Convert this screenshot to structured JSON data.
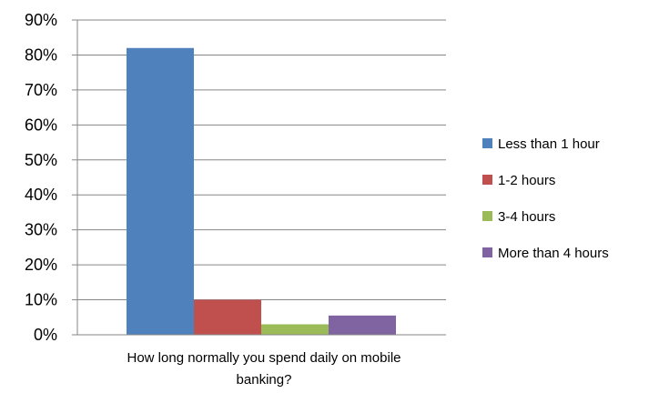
{
  "chart_data": {
    "type": "bar",
    "title": "",
    "xlabel": "How long normally you spend daily on mobile banking?",
    "xlabel_lines": [
      "How long normally you spend daily on mobile",
      "banking?"
    ],
    "ylabel": "",
    "categories": [
      ""
    ],
    "ylim": [
      0,
      90
    ],
    "y_ticks": [
      0,
      10,
      20,
      30,
      40,
      50,
      60,
      70,
      80,
      90
    ],
    "y_tick_labels": [
      "0%",
      "10%",
      "20%",
      "30%",
      "40%",
      "50%",
      "60%",
      "70%",
      "80%",
      "90%"
    ],
    "grid": true,
    "legend_position": "right",
    "series": [
      {
        "name": "Less than 1 hour",
        "values": [
          82
        ],
        "color": "#4F81BD"
      },
      {
        "name": "1-2 hours",
        "values": [
          10
        ],
        "color": "#C0504D"
      },
      {
        "name": "3-4 hours",
        "values": [
          3
        ],
        "color": "#9BBB59"
      },
      {
        "name": "More than 4 hours",
        "values": [
          5.5
        ],
        "color": "#8064A2"
      }
    ]
  }
}
